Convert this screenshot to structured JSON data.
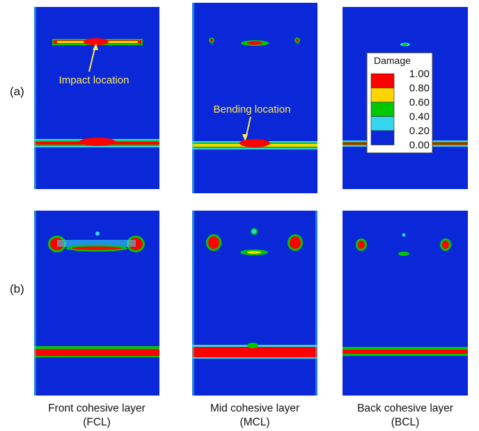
{
  "row_labels": {
    "a": "(a)",
    "b": "(b)"
  },
  "columns": [
    {
      "name": "Front cohesive layer",
      "abbr": "(FCL)"
    },
    {
      "name": "Mid cohesive layer",
      "abbr": "(MCL)"
    },
    {
      "name": "Back cohesive layer",
      "abbr": "(BCL)"
    }
  ],
  "annotations": {
    "impact": "Impact location",
    "bending": "Bending location"
  },
  "legend": {
    "title": "Damage",
    "ticks": [
      "1.00",
      "0.80",
      "0.60",
      "0.40",
      "0.20",
      "0.00"
    ],
    "colors": [
      "#ff0000",
      "#ffd400",
      "#00c800",
      "#33d6ee",
      "#0a28d8"
    ]
  },
  "colors": {
    "background": "#0a28d8",
    "annotation": "#ffe85a"
  }
}
